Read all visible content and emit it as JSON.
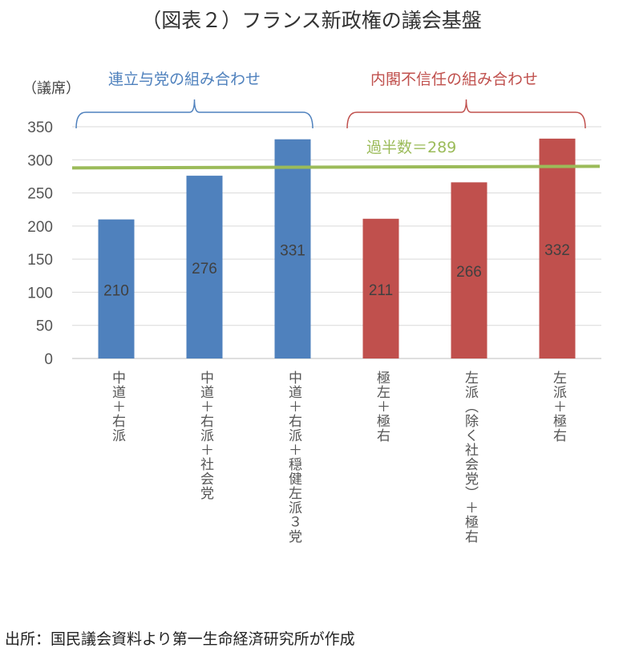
{
  "title": "（図表２）フランス新政権の議会基盤",
  "source": "出所：国民議会資料より第一生命経済研究所が作成",
  "chart_data": {
    "type": "bar",
    "title": "（図表２）フランス新政権の議会基盤",
    "ylabel": "（議席）",
    "xlabel": "",
    "ylim": [
      0,
      350
    ],
    "yticks": [
      0,
      50,
      100,
      150,
      200,
      250,
      300,
      350
    ],
    "grid": true,
    "categories": [
      "中道＋右派",
      "中道＋右派＋社会党",
      "中道＋右派＋穏健左派３党",
      "極左＋極右",
      "左派（除く社会党）＋極右",
      "左派＋極右"
    ],
    "values": [
      210,
      276,
      331,
      211,
      266,
      332
    ],
    "bar_colors": [
      "#4F81BD",
      "#4F81BD",
      "#4F81BD",
      "#C0504D",
      "#C0504D",
      "#C0504D"
    ],
    "groups": [
      {
        "label": "連立与党の組み合わせ",
        "color": "#4F81BD"
      },
      {
        "label": "内閣不信任の組み合わせ",
        "color": "#C0504D"
      }
    ],
    "reference_line": {
      "value": 289,
      "label": "過半数＝289",
      "color": "#9BBB59"
    }
  }
}
